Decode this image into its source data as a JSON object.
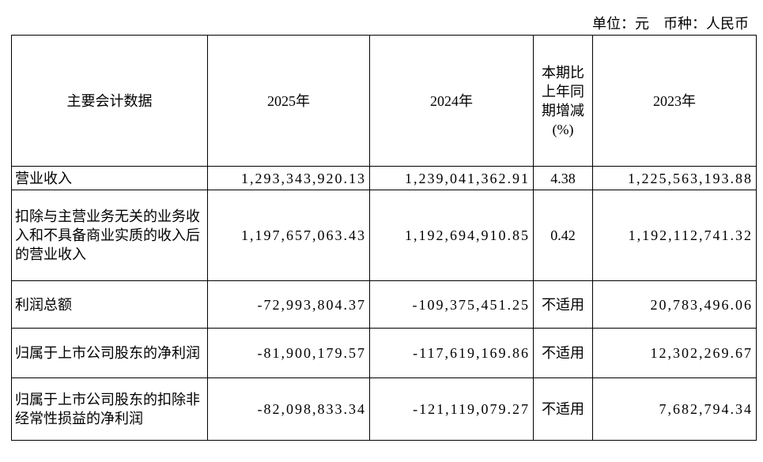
{
  "unit_note": "单位：元　币种：人民币",
  "table": {
    "header": [
      "主要会计数据",
      "2025年",
      "2024年",
      "本期比上年同期增减(%)",
      "2023年"
    ],
    "rows": [
      [
        "营业收入",
        "1,293,343,920.13",
        "1,239,041,362.91",
        "4.38",
        "1,225,563,193.88"
      ],
      [
        "扣除与主营业务无关的业务收入和不具备商业实质的收入后的营业收入",
        "1,197,657,063.43",
        "1,192,694,910.85",
        "0.42",
        "1,192,112,741.32"
      ],
      [
        "利润总额",
        "-72,993,804.37",
        "-109,375,451.25",
        "不适用",
        "20,783,496.06"
      ],
      [
        "归属于上市公司股东的净利润",
        "-81,900,179.57",
        "-117,619,169.86",
        "不适用",
        "12,302,269.67"
      ],
      [
        "归属于上市公司股东的扣除非经常性损益的净利润",
        "-82,098,833.34",
        "-121,119,079.27",
        "不适用",
        "7,682,794.34"
      ]
    ]
  }
}
